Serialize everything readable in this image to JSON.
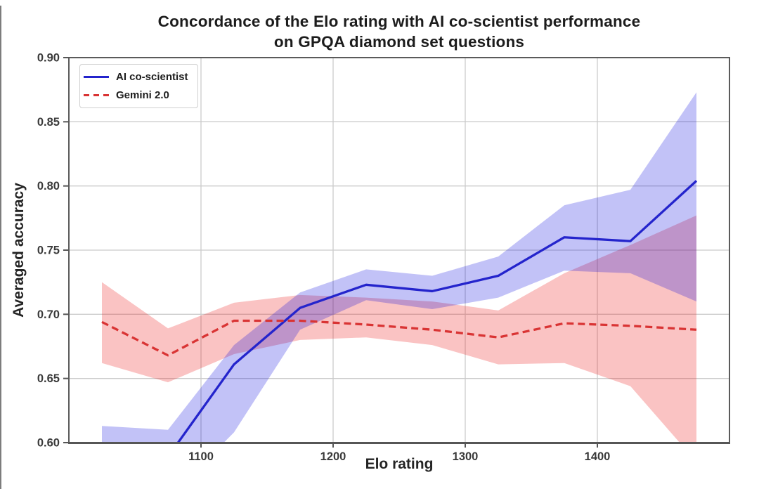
{
  "figure": {
    "title_line1": "Concordance of the Elo rating with AI co-scientist performance",
    "title_line2": "on GPQA diamond set questions",
    "background": "#ffffff"
  },
  "chart_data": {
    "type": "line",
    "title": "Concordance of the Elo rating with AI co-scientist performance on GPQA diamond set questions",
    "xlabel": "Elo rating",
    "ylabel": "Averaged accuracy",
    "xlim": [
      1000,
      1500
    ],
    "ylim": [
      0.6,
      0.9
    ],
    "xticks": [
      1100,
      1200,
      1300,
      1400
    ],
    "xtick_labels": [
      "1100",
      "1200",
      "1300",
      "1400"
    ],
    "yticks": [
      0.6,
      0.65,
      0.7,
      0.75,
      0.8,
      0.85,
      0.9
    ],
    "ytick_labels": [
      "0.60",
      "0.65",
      "0.70",
      "0.75",
      "0.80",
      "0.85",
      "0.90"
    ],
    "grid": true,
    "legend_position": "upper-left",
    "x": [
      1025,
      1075,
      1125,
      1175,
      1225,
      1275,
      1325,
      1375,
      1425,
      1475
    ],
    "series": [
      {
        "id": "ai-co-scientist",
        "name": "AI co-scientist",
        "style": "solid",
        "color": "#2424cc",
        "band_fill": "#0000dd",
        "band_alpha": 0.24,
        "values": [
          0.592,
          0.589,
          0.661,
          0.705,
          0.723,
          0.718,
          0.73,
          0.76,
          0.757,
          0.804
        ],
        "band_low": [
          0.56,
          0.556,
          0.608,
          0.688,
          0.711,
          0.704,
          0.713,
          0.734,
          0.732,
          0.71
        ],
        "band_high": [
          0.613,
          0.61,
          0.676,
          0.717,
          0.735,
          0.73,
          0.745,
          0.785,
          0.797,
          0.873
        ]
      },
      {
        "id": "gemini-2-0",
        "name": "Gemini 2.0",
        "style": "dashed",
        "color": "#d93434",
        "band_fill": "#ee2222",
        "band_alpha": 0.27,
        "values": [
          0.694,
          0.668,
          0.695,
          0.695,
          0.692,
          0.688,
          0.682,
          0.693,
          0.691,
          0.688
        ],
        "band_low": [
          0.662,
          0.647,
          0.669,
          0.68,
          0.682,
          0.676,
          0.661,
          0.662,
          0.644,
          0.585
        ],
        "band_high": [
          0.725,
          0.689,
          0.709,
          0.715,
          0.713,
          0.71,
          0.703,
          0.732,
          0.754,
          0.777
        ]
      }
    ]
  }
}
